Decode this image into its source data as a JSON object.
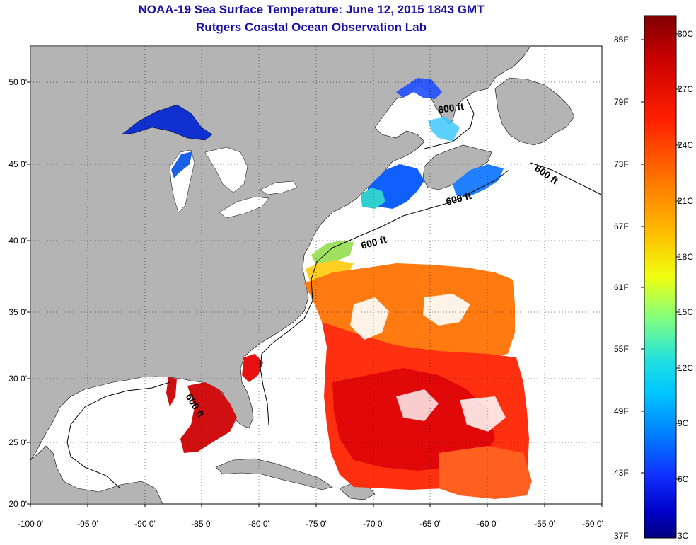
{
  "title_line1": "NOAA-19 Sea Surface Temperature:  June 12, 2015 1843 GMT",
  "title_line2": "Rutgers Coastal Ocean Observation Lab",
  "lat_labels": [
    "50 0'",
    "45 0'",
    "40 0'",
    "35 0'",
    "30 0'",
    "25 0'",
    "20 0'"
  ],
  "lon_labels": [
    "-100 0'",
    "-95 0'",
    "-90 0'",
    "-85 0'",
    "-80 0'",
    "-75 0'",
    "-70 0'",
    "-65 0'",
    "-60 0'",
    "-55 0'",
    "-50 0'"
  ],
  "isobath_label": "600 ft",
  "colorbar": {
    "fahrenheit": [
      "85F",
      "79F",
      "73F",
      "67F",
      "61F",
      "55F",
      "49F",
      "43F",
      "37F"
    ],
    "celsius": [
      "30C",
      "27C",
      "24C",
      "21C",
      "18C",
      "15C",
      "12C",
      "9C",
      "6C",
      "3C"
    ],
    "colors": [
      "#7f0000",
      "#d00000",
      "#ff2a00",
      "#ff7000",
      "#ffb000",
      "#ffff00",
      "#a0ff60",
      "#30e0c0",
      "#00d0ff",
      "#0090ff",
      "#1040ff",
      "#0000c0",
      "#000080"
    ]
  },
  "colors": {
    "land": "#b4b4b4",
    "ocean_nodata": "#ffffff",
    "title": "#1a0fa8"
  }
}
